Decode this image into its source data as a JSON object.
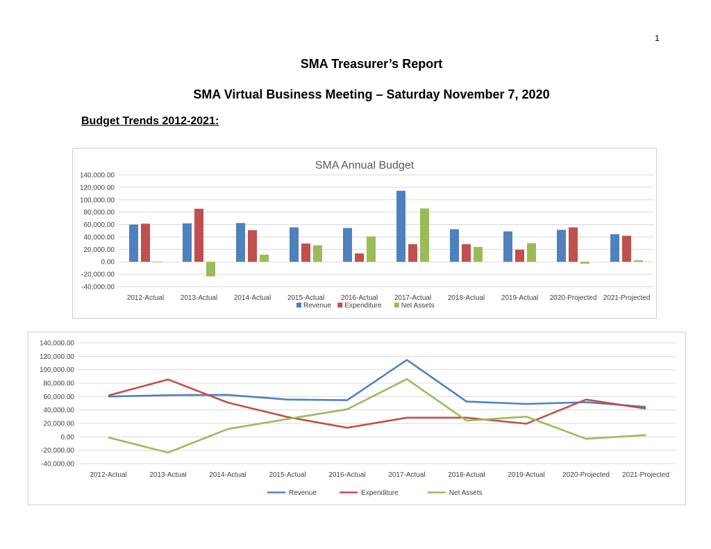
{
  "page": {
    "page_number": "1",
    "title": "SMA Treasurer’s Report",
    "subtitle": "SMA Virtual Business Meeting – Saturday November 7, 2020",
    "section_heading": "Budget Trends 2012-2021:"
  },
  "colors": {
    "Revenue": "#4f81bd",
    "Expenditure": "#c0504d",
    "Net Assets": "#9bbb59"
  },
  "chart_data": [
    {
      "type": "bar",
      "title": "SMA Annual Budget",
      "categories": [
        "2012-Actual",
        "2013-Actual",
        "2014-Actual",
        "2015-Actual",
        "2016-Actual",
        "2017-Actual",
        "2018-Actual",
        "2019-Actual",
        "2020-Projected",
        "2021-Projected"
      ],
      "series": [
        {
          "name": "Revenue",
          "values": [
            60000,
            62000,
            62500,
            55500,
            54500,
            114500,
            52500,
            49000,
            51500,
            44500
          ]
        },
        {
          "name": "Expenditure",
          "values": [
            61500,
            85500,
            51000,
            29500,
            13500,
            28500,
            28500,
            19500,
            55500,
            42000
          ]
        },
        {
          "name": "Net Assets",
          "values": [
            -1000,
            -23500,
            11500,
            26500,
            41000,
            86000,
            24000,
            30000,
            -3000,
            2500
          ]
        }
      ],
      "yticks": [
        "140,000.00",
        "120,000.00",
        "100,000.00",
        "80,000.00",
        "60,000.00",
        "40,000.00",
        "20,000.00",
        "0.00",
        "-20,000.00",
        "-40,000.00"
      ],
      "ylim": [
        -40000,
        140000
      ],
      "grid": true,
      "legend": "bottom"
    },
    {
      "type": "line",
      "title": "",
      "categories": [
        "2012-Actual",
        "2013-Actual",
        "2014-Actual",
        "2015-Actual",
        "2016-Actual",
        "2017-Actual",
        "2018-Actual",
        "2019-Actual",
        "2020-Projected",
        "2021-Projected"
      ],
      "series": [
        {
          "name": "Revenue",
          "values": [
            60000,
            62000,
            62500,
            55500,
            54500,
            114500,
            52500,
            49000,
            51500,
            44500
          ]
        },
        {
          "name": "Expenditure",
          "values": [
            61500,
            85500,
            51000,
            29500,
            13500,
            28500,
            28500,
            19500,
            55500,
            42000
          ]
        },
        {
          "name": "Net Assets",
          "values": [
            -1000,
            -23500,
            11500,
            26500,
            41000,
            86000,
            24000,
            30000,
            -3000,
            2500
          ]
        }
      ],
      "yticks": [
        "140,000.00",
        "120,000.00",
        "100,000.00",
        "80,000.00",
        "60,000.00",
        "40,000.00",
        "20,000.00",
        "0.00",
        "-20,000.00",
        "-40,000.00"
      ],
      "ylim": [
        -40000,
        140000
      ],
      "grid": true,
      "legend": "bottom"
    }
  ]
}
